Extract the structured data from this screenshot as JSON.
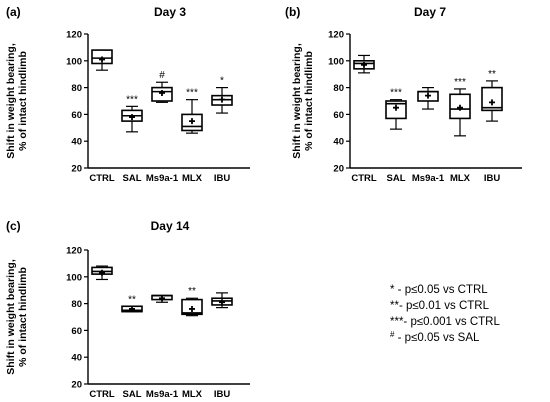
{
  "chart_data": [
    {
      "type": "box",
      "panel": "(a)",
      "title": "Day 3",
      "ylabel_lines": [
        "Shift in weight bearing,",
        "% of intact hindlimb"
      ],
      "ylim": [
        20,
        120
      ],
      "yticks": [
        20,
        40,
        60,
        80,
        100,
        120
      ],
      "categories": [
        "CTRL",
        "SAL",
        "Ms9a-1",
        "MLX",
        "IBU"
      ],
      "boxes": [
        {
          "min": 93,
          "q1": 98,
          "median": 102,
          "q3": 108,
          "max": 108,
          "mean": 101,
          "sig": ""
        },
        {
          "min": 47,
          "q1": 55,
          "median": 59,
          "q3": 63,
          "max": 66,
          "mean": 58,
          "sig": "***"
        },
        {
          "min": 69,
          "q1": 70,
          "median": 77,
          "q3": 80,
          "max": 84,
          "mean": 76,
          "sig": "#"
        },
        {
          "min": 46,
          "q1": 48,
          "median": 51,
          "q3": 60,
          "max": 71,
          "mean": 55,
          "sig": "***"
        },
        {
          "min": 61,
          "q1": 67,
          "median": 71,
          "q3": 74,
          "max": 80,
          "mean": 71,
          "sig": "*"
        }
      ]
    },
    {
      "type": "box",
      "panel": "(b)",
      "title": "Day 7",
      "ylabel_lines": [
        "Shift in weight bearing,",
        "% of intact hindlimb"
      ],
      "ylim": [
        20,
        120
      ],
      "yticks": [
        20,
        40,
        60,
        80,
        100,
        120
      ],
      "categories": [
        "CTRL",
        "SAL",
        "Ms9a-1",
        "MLX",
        "IBU"
      ],
      "boxes": [
        {
          "min": 91,
          "q1": 94,
          "median": 98,
          "q3": 100,
          "max": 104,
          "mean": 97,
          "sig": ""
        },
        {
          "min": 49,
          "q1": 57,
          "median": 68,
          "q3": 70,
          "max": 71,
          "mean": 65,
          "sig": "***"
        },
        {
          "min": 64,
          "q1": 70,
          "median": 77,
          "q3": 77,
          "max": 80,
          "mean": 74,
          "sig": ""
        },
        {
          "min": 44,
          "q1": 57,
          "median": 64,
          "q3": 75,
          "max": 79,
          "mean": 65,
          "sig": "***"
        },
        {
          "min": 55,
          "q1": 63,
          "median": 65,
          "q3": 80,
          "max": 85,
          "mean": 69,
          "sig": "**"
        }
      ]
    },
    {
      "type": "box",
      "panel": "(c)",
      "title": "Day 14",
      "ylabel_lines": [
        "Shift in weight bearing,",
        "% of intact hindlimb"
      ],
      "ylim": [
        20,
        120
      ],
      "yticks": [
        20,
        40,
        60,
        80,
        100,
        120
      ],
      "categories": [
        "CTRL",
        "SAL",
        "Ms9a-1",
        "MLX",
        "IBU"
      ],
      "boxes": [
        {
          "min": 98,
          "q1": 102,
          "median": 104,
          "q3": 107,
          "max": 108,
          "mean": 103,
          "sig": ""
        },
        {
          "min": 74,
          "q1": 74,
          "median": 75,
          "q3": 78,
          "max": 78,
          "mean": 76,
          "sig": "**"
        },
        {
          "min": 81,
          "q1": 83,
          "median": 86,
          "q3": 86,
          "max": 86,
          "mean": 84,
          "sig": ""
        },
        {
          "min": 71,
          "q1": 72,
          "median": 73,
          "q3": 83,
          "max": 84,
          "mean": 76,
          "sig": "**"
        },
        {
          "min": 77,
          "q1": 79,
          "median": 82,
          "q3": 84,
          "max": 88,
          "mean": 81,
          "sig": ""
        }
      ]
    }
  ],
  "legend": [
    {
      "symbol": "*",
      "sup": "",
      "text": " - p≤0.05 vs CTRL"
    },
    {
      "symbol": "**",
      "sup": "",
      "text": "- p≤0.01 vs CTRL"
    },
    {
      "symbol": "***",
      "sup": "",
      "text": "- p≤0.001 vs CTRL"
    },
    {
      "symbol": "",
      "sup": "#",
      "text": " - p≤0.05 vs SAL"
    }
  ]
}
